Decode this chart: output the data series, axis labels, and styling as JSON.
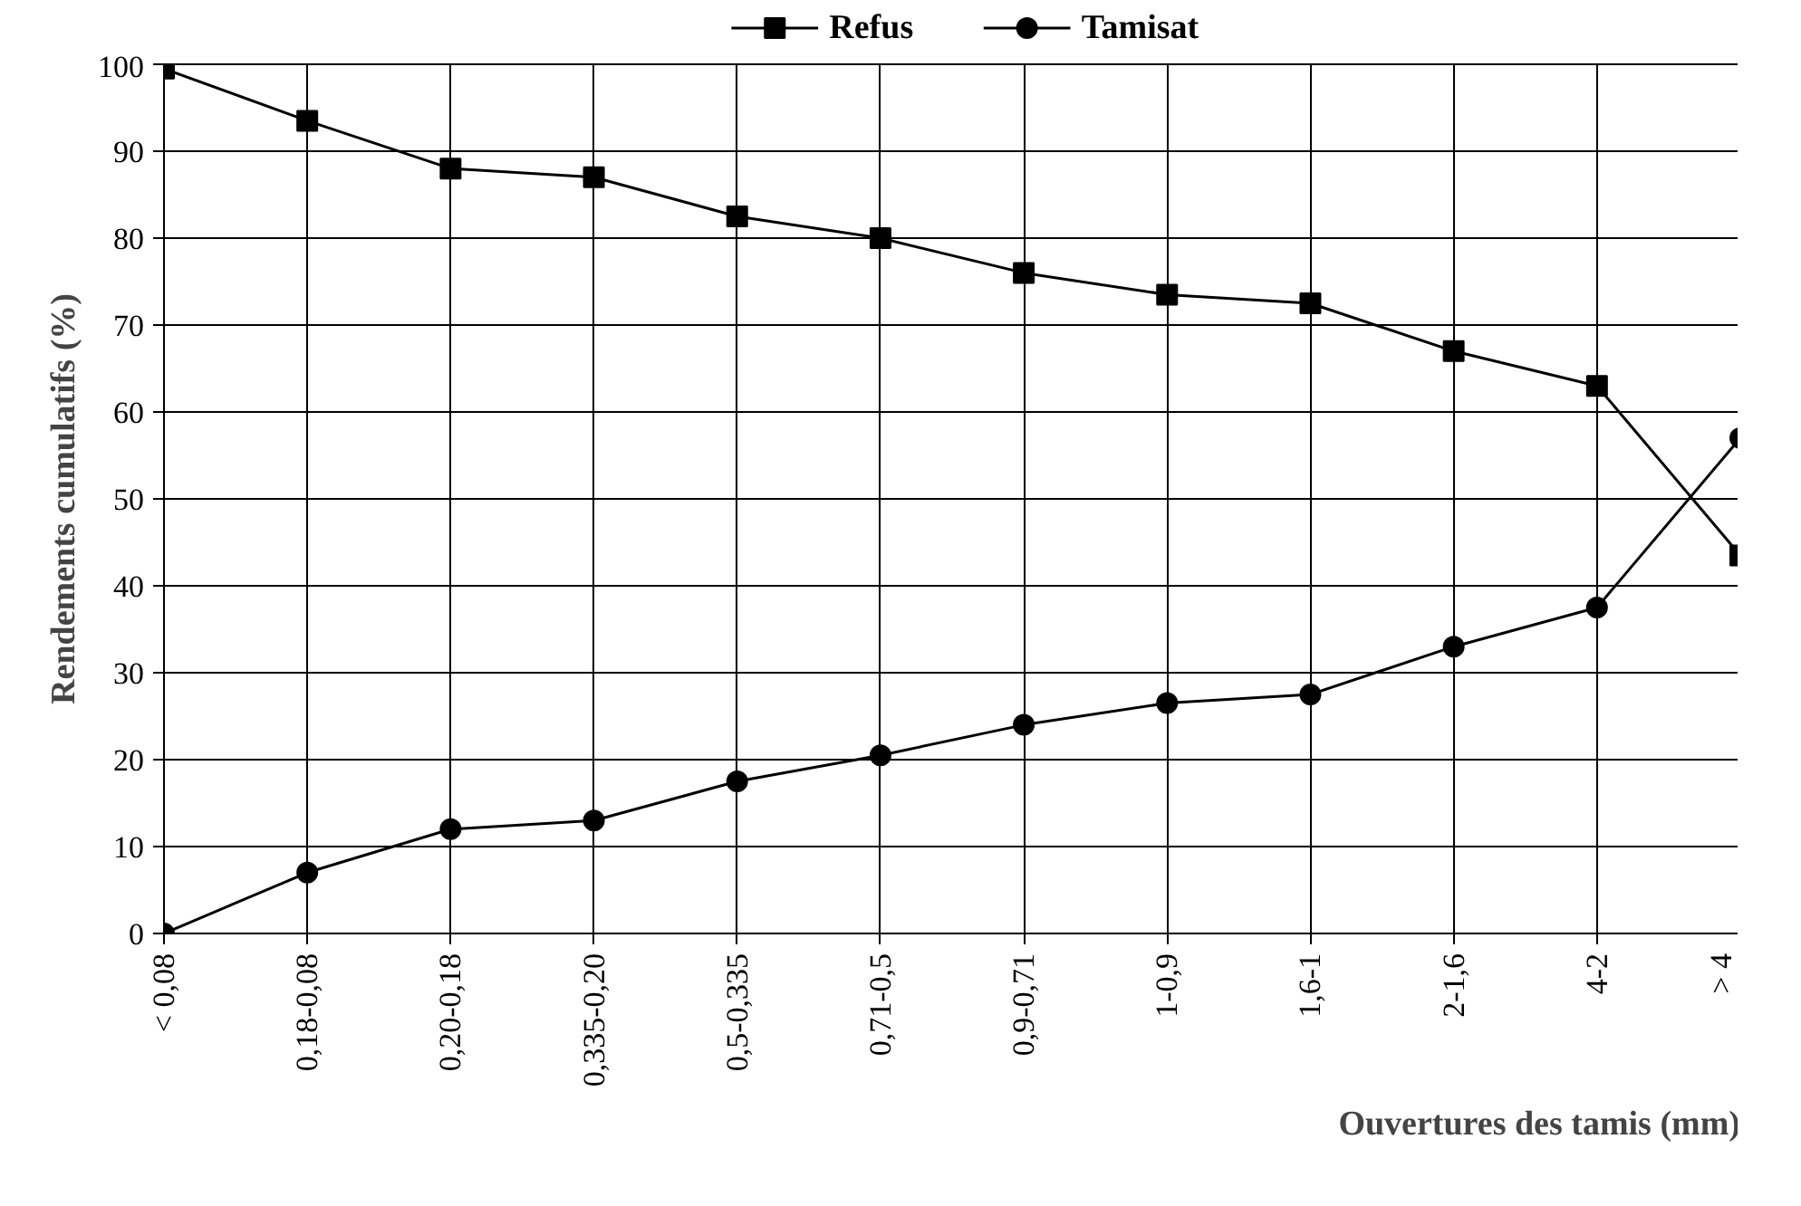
{
  "chart_data": {
    "type": "line",
    "xlabel": "Ouvertures des tamis (mm)",
    "ylabel": "Rendements cumulatifs (%)",
    "categories": [
      "< 0,08",
      "0,18-0,08",
      "0,20-0,18",
      "0,335-0,20",
      "0,5-0,335",
      "0,71-0,5",
      "0,9-0,71",
      "1-0,9",
      "1,6-1",
      "2-1,6",
      "4-2",
      "> 4"
    ],
    "series": [
      {
        "name": "Refus",
        "color": "#000000",
        "marker": "square",
        "values": [
          99.5,
          93.5,
          88,
          87,
          82.5,
          80,
          76,
          73.5,
          72.5,
          67,
          63,
          43.5
        ]
      },
      {
        "name": "Tamisat",
        "color": "#000000",
        "marker": "circle",
        "values": [
          0,
          7,
          12,
          13,
          17.5,
          20.5,
          24,
          26.5,
          27.5,
          33,
          37.5,
          57
        ]
      }
    ],
    "ylim": [
      0,
      100
    ],
    "yticks": [
      0,
      10,
      20,
      30,
      40,
      50,
      60,
      70,
      80,
      90,
      100
    ],
    "grid": true,
    "legend": "top",
    "line_style": "solid"
  }
}
